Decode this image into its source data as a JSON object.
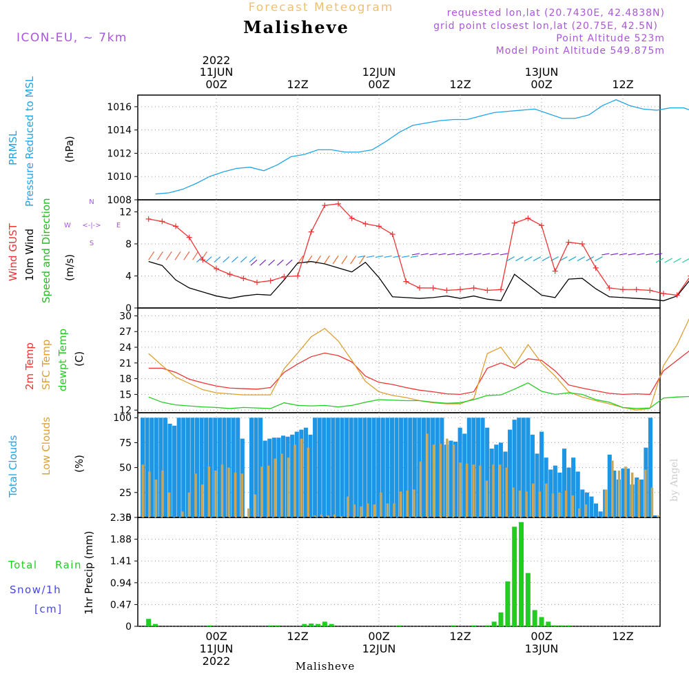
{
  "header": {
    "subtitle": "Forecast Meteogram",
    "title": "Malisheve",
    "model": "ICON-EU, ~ 7km",
    "requested": "requested lon,lat (20.7430E, 42.4838N)",
    "grid_point": "grid point closest lon,lat (20.75E, 42.5N)",
    "point_alt": "Point Altitude 523m",
    "model_alt": "Model Point Altitude 549.875m"
  },
  "footer": {
    "location": "Malisheve",
    "credit": "by Angel"
  },
  "colors": {
    "pressure": "#1ea5e8",
    "gust": "#ee3333",
    "wind": "#000000",
    "dir": "#22bb22",
    "temp2m": "#ee3333",
    "sfc": "#dda030",
    "dewpt": "#22cc22",
    "total_clouds": "#1e96e6",
    "low_clouds": "#c8a65a",
    "rain": "#22cc22",
    "snow": "#4444ee",
    "header_purple": "#aa55dd",
    "subtitle_orange": "#f0c070"
  },
  "time_axis": {
    "top": [
      {
        "year": "2022",
        "date": "11JUN",
        "time": "00Z"
      },
      {
        "year": "",
        "date": "",
        "time": "12Z"
      },
      {
        "year": "",
        "date": "12JUN",
        "time": "00Z"
      },
      {
        "year": "",
        "date": "",
        "time": "12Z"
      },
      {
        "year": "",
        "date": "13JUN",
        "time": "00Z"
      },
      {
        "year": "",
        "date": "",
        "time": "12Z"
      }
    ],
    "bottom": [
      {
        "time": "00Z",
        "date": "11JUN",
        "year": "2022"
      },
      {
        "time": "12Z",
        "date": "",
        "year": ""
      },
      {
        "time": "00Z",
        "date": "12JUN",
        "year": ""
      },
      {
        "time": "12Z",
        "date": "",
        "year": ""
      },
      {
        "time": "00Z",
        "date": "13JUN",
        "year": ""
      },
      {
        "time": "12Z",
        "date": "",
        "year": ""
      }
    ]
  },
  "panel_labels": {
    "pressure": {
      "name1": "PRMSL",
      "name2": "Pressure Reduced to MSL",
      "unit": "(hPa)"
    },
    "wind": {
      "gust": "Wind GUST",
      "wind": "10m Wind",
      "dir": "Speed and Direction",
      "unit": "(m/s)",
      "compass_n": "N",
      "compass_s": "S",
      "compass_w": "W",
      "compass_e": "E",
      "compass_mid": "<-|->"
    },
    "temp": {
      "t2m": "2m Temp",
      "sfc": "SFC Temp",
      "dew": "dewpt Temp",
      "unit": "(C)"
    },
    "clouds": {
      "total": "Total Clouds",
      "low": "Low Clouds",
      "unit": "(%)"
    },
    "precip": {
      "total": "Total",
      "rain": "Rain",
      "snow": "Snow/1h",
      "cm": "[cm]",
      "axis": "1hr Precip (mm)"
    }
  },
  "chart_data": [
    {
      "type": "line",
      "title": "PRMSL Pressure Reduced to MSL",
      "ylabel": "hPa",
      "ylim": [
        1008,
        1017
      ],
      "yticks": [
        1008,
        1010,
        1012,
        1014,
        1016
      ],
      "x_hours": [
        -9,
        -7,
        -5,
        -3,
        -1,
        1,
        3,
        5,
        7,
        9,
        11,
        13,
        15,
        17,
        19,
        21,
        23,
        25,
        27,
        29,
        31,
        33,
        35,
        37,
        39,
        41,
        43,
        45,
        47,
        49,
        51,
        53,
        55,
        57,
        59,
        61,
        63,
        65,
        67,
        69,
        71,
        73,
        75,
        77
      ],
      "series": [
        {
          "name": "PRMSL",
          "values": [
            1008.5,
            1008.6,
            1008.9,
            1009.4,
            1010.0,
            1010.4,
            1010.7,
            1010.8,
            1010.5,
            1011.0,
            1011.7,
            1011.9,
            1012.3,
            1012.3,
            1012.1,
            1012.1,
            1012.3,
            1013.0,
            1013.8,
            1014.4,
            1014.6,
            1014.8,
            1014.9,
            1014.9,
            1015.2,
            1015.5,
            1015.6,
            1015.7,
            1015.8,
            1015.4,
            1015.0,
            1015.0,
            1015.3,
            1016.1,
            1016.6,
            1016.1,
            1015.8,
            1015.7,
            1015.9,
            1015.9,
            1015.5,
            1014.9,
            1014.1,
            1013.4
          ]
        }
      ]
    },
    {
      "type": "line",
      "title": "Wind GUST / 10m Wind Speed and Direction",
      "ylabel": "m/s",
      "ylim": [
        0,
        13.5
      ],
      "yticks": [
        0,
        4,
        8,
        12
      ],
      "gust_x": [
        -10,
        -8,
        -6,
        -4,
        -2,
        0,
        2,
        4,
        6,
        8,
        10,
        12,
        14,
        16,
        18,
        20,
        22,
        24,
        26,
        28,
        30,
        32,
        34,
        36,
        38,
        40,
        42,
        44,
        46,
        48,
        50,
        52,
        54,
        56,
        58,
        60,
        62,
        64,
        66,
        68,
        70,
        72,
        74,
        76,
        78
      ],
      "series": [
        {
          "name": "Wind GUST",
          "values": [
            11.1,
            10.8,
            10.2,
            8.8,
            6.0,
            4.9,
            4.2,
            3.7,
            3.2,
            3.4,
            3.9,
            4.0,
            9.5,
            12.8,
            13.0,
            11.2,
            10.5,
            10.2,
            9.2,
            3.3,
            2.5,
            2.5,
            2.2,
            2.3,
            2.5,
            2.2,
            2.3,
            10.6,
            11.2,
            10.3,
            4.6,
            8.2,
            8.0,
            5.0,
            2.5,
            2.3,
            2.3,
            2.2,
            1.8,
            1.6,
            4.0,
            7.2,
            7.6,
            7.8,
            7.0
          ]
        },
        {
          "name": "10m Wind",
          "values": [
            5.8,
            5.3,
            3.5,
            2.5,
            2.0,
            1.5,
            1.2,
            1.5,
            1.7,
            1.6,
            3.5,
            5.6,
            5.8,
            5.5,
            5.0,
            4.5,
            5.7,
            3.8,
            1.4,
            1.3,
            1.2,
            1.3,
            1.5,
            1.2,
            1.5,
            1.1,
            0.9,
            4.2,
            2.9,
            1.6,
            1.3,
            3.6,
            3.7,
            2.4,
            1.4,
            1.3,
            1.2,
            1.1,
            0.9,
            1.5,
            3.6,
            3.8,
            3.5,
            3.3,
            3.2
          ]
        }
      ],
      "wind_barbs": [
        {
          "hours_from": -10,
          "hours_to": -2,
          "speed": 6.0,
          "band": "N/NE",
          "color": "#ee6644"
        },
        {
          "hours_from": -2,
          "hours_to": 6,
          "speed": 6.4,
          "band": "W/SW",
          "color": "#2299ee"
        },
        {
          "hours_from": 6,
          "hours_to": 12,
          "speed": 6.0,
          "band": "W/SW",
          "color": "#7722cc"
        },
        {
          "hours_from": 12,
          "hours_to": 22,
          "speed": 5.5,
          "band": "N/NE",
          "color": "#ee6622"
        },
        {
          "hours_from": 22,
          "hours_to": 30,
          "speed": 6.5,
          "band": "E",
          "color": "#2299ee"
        },
        {
          "hours_from": 30,
          "hours_to": 44,
          "speed": 6.8,
          "band": "E",
          "color": "#7722cc"
        },
        {
          "hours_from": 44,
          "hours_to": 58,
          "speed": 6.4,
          "band": "NE",
          "color": "#22aacc"
        },
        {
          "hours_from": 58,
          "hours_to": 66,
          "speed": 6.8,
          "band": "E",
          "color": "#7722cc"
        },
        {
          "hours_from": 66,
          "hours_to": 78,
          "speed": 6.2,
          "band": "NE",
          "color": "#22cc99"
        }
      ]
    },
    {
      "type": "line",
      "title": "2m Temp / SFC Temp / dewpt Temp",
      "ylabel": "C",
      "ylim": [
        11.5,
        31.5
      ],
      "yticks": [
        12,
        15,
        18,
        21,
        24,
        27,
        30
      ],
      "x_hours": [
        -10,
        -8,
        -6,
        -4,
        -2,
        0,
        2,
        4,
        6,
        8,
        10,
        12,
        14,
        16,
        18,
        20,
        22,
        24,
        26,
        28,
        30,
        32,
        34,
        36,
        38,
        40,
        42,
        44,
        46,
        48,
        50,
        52,
        54,
        56,
        58,
        60,
        62,
        64,
        66,
        68,
        70,
        72,
        74,
        76,
        78
      ],
      "series": [
        {
          "name": "2m Temp",
          "values": [
            20.0,
            20.0,
            19.2,
            17.9,
            17.2,
            16.6,
            16.2,
            16.1,
            16.0,
            16.3,
            19.2,
            20.8,
            22.2,
            22.9,
            22.4,
            21.2,
            18.5,
            17.3,
            16.9,
            16.3,
            15.8,
            15.5,
            15.1,
            15.0,
            15.5,
            20.0,
            21.0,
            20.0,
            21.8,
            21.5,
            19.5,
            16.8,
            16.2,
            15.7,
            15.2,
            15.0,
            15.1,
            15.0,
            19.5,
            21.5,
            23.5,
            24.8,
            25.3,
            24.5,
            22.8
          ]
        },
        {
          "name": "SFC Temp",
          "values": [
            22.8,
            20.5,
            18.3,
            17.1,
            15.9,
            15.3,
            15.1,
            14.9,
            14.9,
            14.9,
            19.9,
            22.9,
            26.0,
            27.6,
            25.2,
            21.5,
            17.5,
            15.5,
            14.8,
            14.4,
            13.8,
            13.4,
            13.2,
            13.2,
            14.2,
            22.8,
            24.0,
            20.5,
            24.5,
            21.0,
            18.5,
            15.5,
            14.5,
            13.8,
            13.2,
            12.5,
            12.0,
            12.3,
            20.5,
            24.5,
            30.0,
            31.5,
            29.5,
            26.0,
            22.5
          ]
        },
        {
          "name": "dewpt Temp",
          "values": [
            14.5,
            13.5,
            13.0,
            12.8,
            12.6,
            12.5,
            12.3,
            12.5,
            12.4,
            12.3,
            13.4,
            12.9,
            12.8,
            12.9,
            12.6,
            12.9,
            13.5,
            14.0,
            13.9,
            13.8,
            13.8,
            13.5,
            13.3,
            13.4,
            14.0,
            14.8,
            14.9,
            16.0,
            17.2,
            15.6,
            15.0,
            15.3,
            15.0,
            14.0,
            13.5,
            12.5,
            12.3,
            12.4,
            14.3,
            14.5,
            14.6,
            14.8,
            14.7,
            14.3,
            15.5
          ]
        }
      ]
    },
    {
      "type": "bar",
      "title": "Total Clouds / Low Clouds",
      "ylabel": "%",
      "ylim": [
        0,
        105
      ],
      "yticks": [
        0,
        25,
        50,
        75,
        100
      ],
      "x_start_hour": -10.5,
      "x_step_hour": 1,
      "series": [
        {
          "name": "Total Clouds",
          "values": [
            100,
            100,
            100,
            100,
            100,
            100,
            94,
            92,
            100,
            100,
            100,
            100,
            100,
            100,
            100,
            100,
            100,
            100,
            100,
            100,
            100,
            100,
            79,
            0,
            100,
            100,
            100,
            77,
            79,
            80,
            80,
            82,
            81,
            83,
            86,
            88,
            90,
            83,
            100,
            100,
            100,
            100,
            100,
            100,
            100,
            100,
            100,
            100,
            100,
            100,
            100,
            100,
            100,
            100,
            100,
            100,
            100,
            100,
            100,
            100,
            100,
            100,
            100,
            100,
            100,
            100,
            100,
            73,
            77,
            76,
            90,
            84,
            100,
            100,
            100,
            100,
            90,
            69,
            73,
            75,
            66,
            88,
            98,
            100,
            100,
            100,
            83,
            64,
            86,
            60,
            48,
            52,
            45,
            69,
            50,
            60,
            46,
            28,
            25,
            21,
            14,
            6,
            28,
            63,
            47,
            38,
            49,
            49,
            33,
            40,
            38,
            70,
            100,
            2
          ]
        },
        {
          "name": "Low Clouds",
          "values": [
            53,
            46,
            38,
            47,
            25,
            1,
            6,
            25,
            44,
            33,
            51,
            47,
            53,
            50,
            45,
            44,
            9,
            23,
            51,
            52,
            59,
            64,
            60,
            73,
            79,
            70,
            2,
            3,
            2,
            3,
            1,
            21,
            13,
            11,
            14,
            13,
            25,
            14,
            14,
            26,
            27,
            28,
            56,
            84,
            73,
            74,
            79,
            73,
            55,
            54,
            53,
            52,
            37,
            53,
            53,
            50,
            30,
            27,
            26,
            34,
            26,
            34,
            24,
            25,
            27,
            22,
            9,
            13,
            0,
            0,
            28,
            57,
            47,
            51,
            45,
            38,
            48,
            30,
            2
          ]
        }
      ]
    },
    {
      "type": "bar",
      "title": "1hr Precip",
      "ylabel": "1hr Precip (mm)",
      "ylim": [
        0,
        2.35
      ],
      "yticks": [
        0,
        0.47,
        0.94,
        1.41,
        1.88,
        2.35
      ],
      "x_hours": [
        -10,
        -9,
        -1,
        8,
        9,
        13,
        14,
        15,
        16,
        17,
        27,
        35,
        38,
        40,
        41,
        42,
        43,
        44,
        45,
        46,
        47,
        48,
        49,
        50,
        51,
        52,
        73,
        78
      ],
      "series": [
        {
          "name": "Total Rain",
          "values": [
            0.16,
            0.05,
            0.02,
            0.02,
            0.02,
            0.05,
            0.06,
            0.05,
            0.1,
            0.05,
            0.02,
            0.02,
            0.02,
            0.02,
            0.1,
            0.3,
            0.97,
            2.15,
            2.25,
            1.15,
            0.35,
            0.2,
            0.1,
            0.02,
            0.02,
            0.02,
            0.02,
            0.02
          ]
        },
        {
          "name": "Snow/1h",
          "values": []
        }
      ]
    }
  ]
}
